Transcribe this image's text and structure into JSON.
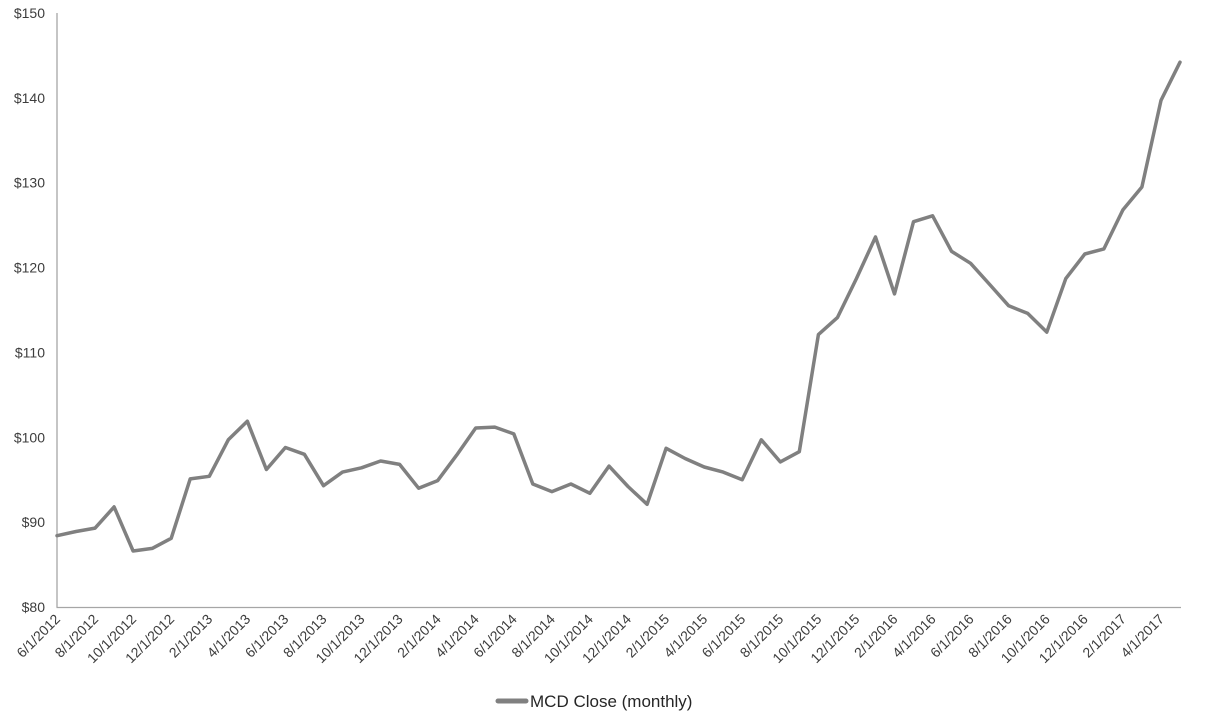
{
  "chart_data": {
    "type": "line",
    "title": "",
    "legend": "MCD Close (monthly)",
    "legend_position": "bottom-center",
    "grid": false,
    "background": "#ffffff",
    "axis_line_color": "#a6a6a6",
    "tick_label_color": "#3d3d3d",
    "legend_text_color": "#262626",
    "ylim": [
      80,
      150
    ],
    "xlabel": "",
    "ylabel": "",
    "y_ticks": [
      "$80",
      "$90",
      "$100",
      "$110",
      "$120",
      "$130",
      "$140",
      "$150"
    ],
    "x": [
      "6/1/2012",
      "7/1/2012",
      "8/1/2012",
      "9/1/2012",
      "10/1/2012",
      "11/1/2012",
      "12/1/2012",
      "1/1/2013",
      "2/1/2013",
      "3/1/2013",
      "4/1/2013",
      "5/1/2013",
      "6/1/2013",
      "7/1/2013",
      "8/1/2013",
      "9/1/2013",
      "10/1/2013",
      "11/1/2013",
      "12/1/2013",
      "1/1/2014",
      "2/1/2014",
      "3/1/2014",
      "4/1/2014",
      "5/1/2014",
      "6/1/2014",
      "7/1/2014",
      "8/1/2014",
      "9/1/2014",
      "10/1/2014",
      "11/1/2014",
      "12/1/2014",
      "1/1/2015",
      "2/1/2015",
      "3/1/2015",
      "4/1/2015",
      "5/1/2015",
      "6/1/2015",
      "7/1/2015",
      "8/1/2015",
      "9/1/2015",
      "10/1/2015",
      "11/1/2015",
      "12/1/2015",
      "1/1/2016",
      "2/1/2016",
      "3/1/2016",
      "4/1/2016",
      "5/1/2016",
      "6/1/2016",
      "7/1/2016",
      "8/1/2016",
      "9/1/2016",
      "10/1/2016",
      "11/1/2016",
      "12/1/2016",
      "1/1/2017",
      "2/1/2017",
      "3/1/2017",
      "4/1/2017",
      "5/1/2017"
    ],
    "x_tick_labels": [
      "6/1/2012",
      "8/1/2012",
      "10/1/2012",
      "12/1/2012",
      "2/1/2013",
      "4/1/2013",
      "6/1/2013",
      "8/1/2013",
      "10/1/2013",
      "12/1/2013",
      "2/1/2014",
      "4/1/2014",
      "6/1/2014",
      "8/1/2014",
      "10/1/2014",
      "12/1/2014",
      "2/1/2015",
      "4/1/2015",
      "6/1/2015",
      "8/1/2015",
      "10/1/2015",
      "12/1/2015",
      "2/1/2016",
      "4/1/2016",
      "6/1/2016",
      "8/1/2016",
      "10/1/2016",
      "12/1/2016",
      "2/1/2017",
      "4/1/2017"
    ],
    "series": [
      {
        "name": "MCD Close (monthly)",
        "color": "#808080",
        "values": [
          88.4,
          88.9,
          89.3,
          91.8,
          86.6,
          86.9,
          88.1,
          95.1,
          95.4,
          99.7,
          101.9,
          96.2,
          98.8,
          98.0,
          94.3,
          95.9,
          96.4,
          97.2,
          96.8,
          94.0,
          94.9,
          97.9,
          101.1,
          101.2,
          100.4,
          94.5,
          93.6,
          94.5,
          93.4,
          96.6,
          94.2,
          92.1,
          98.7,
          97.5,
          96.5,
          95.9,
          95.0,
          99.7,
          97.1,
          98.3,
          112.1,
          114.1,
          118.7,
          123.6,
          116.9,
          125.4,
          126.1,
          121.9,
          120.5,
          118.0,
          115.5,
          114.6,
          112.4,
          118.7,
          121.6,
          122.2,
          126.8,
          129.5,
          139.7,
          144.2
        ]
      }
    ]
  }
}
